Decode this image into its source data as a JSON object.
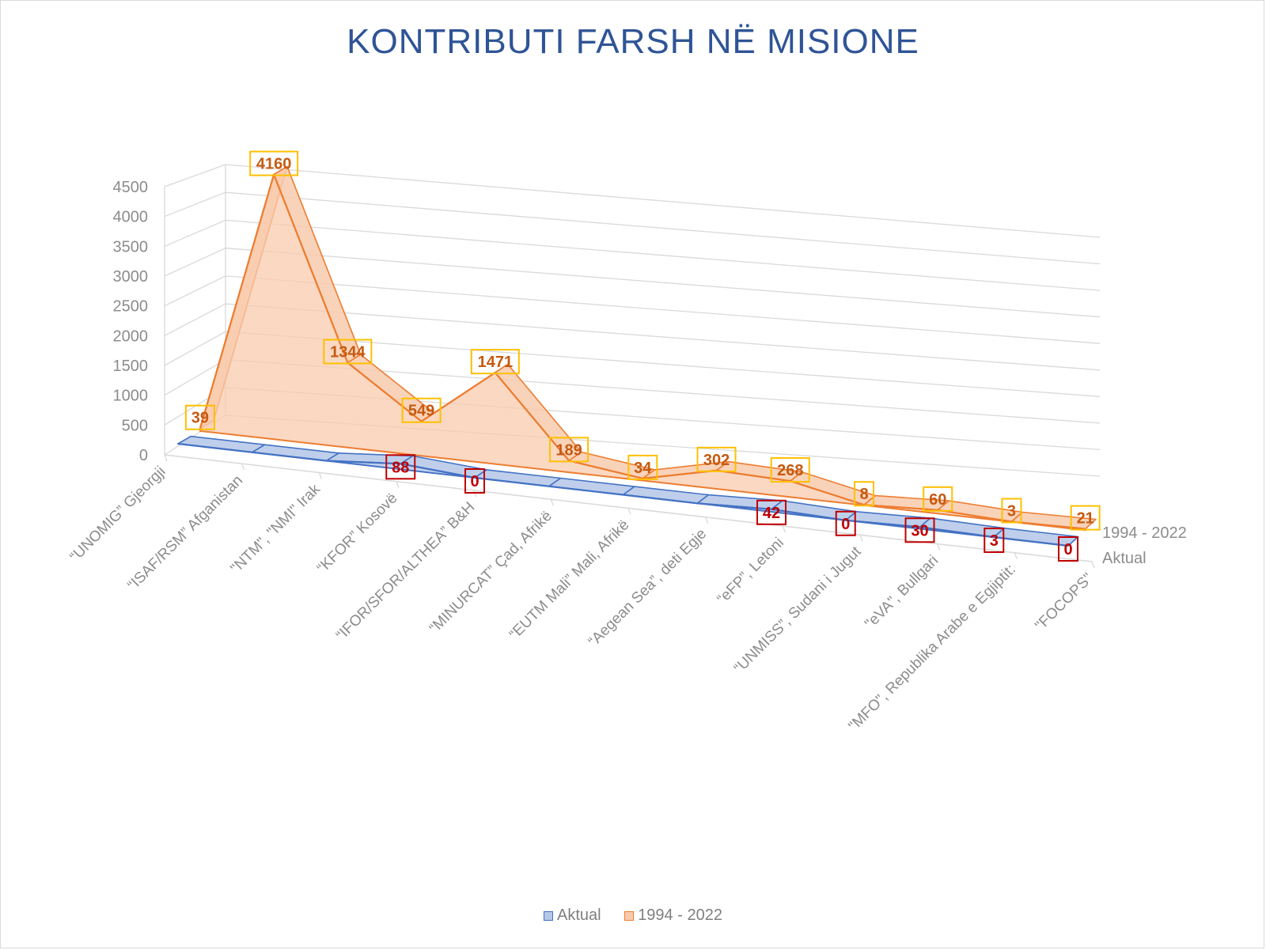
{
  "chart_data": {
    "type": "area",
    "title": "KONTRIBUTI FARSH NË MISIONE",
    "categories": [
      "“UNOMIG” Gjeorgji",
      "“ISAF/RSM” Afganistan",
      "\"NTM\", \"NMI\" Irak",
      "“KFOR” Kosovë",
      "“IFOR/SFOR/ALTHEA” B&H",
      "“MINURCAT” Çad, Afrikë",
      "“EUTM Mali” Mali, Afrikë",
      "“Aegean Sea”, deti Egje",
      "“eFP”, Letoni",
      "“UNMISS”, Sudani i Jugut",
      "\"eVA\", Bullgari",
      "\"MFO\", Republika Arabe e Egjiptit:",
      "\"FOCOPS\""
    ],
    "series": [
      {
        "name": "1994 - 2022",
        "values": [
          39,
          4160,
          1344,
          549,
          1471,
          189,
          34,
          302,
          268,
          8,
          60,
          3,
          21
        ],
        "labels": [
          "39",
          "4160",
          "1344",
          "549",
          "1471",
          "189",
          "34",
          "302",
          "268",
          "8",
          "60",
          "3",
          "21"
        ],
        "color": "#ed7d31",
        "fill": "#f8cbad",
        "label_color": "#c55a11",
        "label_border": "#ffc000"
      },
      {
        "name": "Aktual",
        "values": [
          0,
          0,
          0,
          88,
          0,
          0,
          0,
          0,
          42,
          0,
          30,
          3,
          0
        ],
        "labels": [
          "",
          "",
          "",
          "88",
          "0",
          "",
          "",
          "",
          "42",
          "0",
          "30",
          "3",
          "0"
        ],
        "color": "#4472c4",
        "fill": "#b4c7e7",
        "label_color": "#c00000",
        "label_border": "#c00000"
      }
    ],
    "y_ticks": [
      "0",
      "500",
      "1000",
      "1500",
      "2000",
      "2500",
      "3000",
      "3500",
      "4000",
      "4500"
    ],
    "ylim": [
      0,
      4500
    ],
    "depth_labels": [
      "1994 - 2022",
      "Aktual"
    ],
    "grid": true,
    "legend_position": "bottom"
  },
  "legend": {
    "items": [
      {
        "label": "Aktual",
        "swatch_fill": "#b4c7e7",
        "swatch_border": "#4472c4"
      },
      {
        "label": "1994 - 2022",
        "swatch_fill": "#f8cbad",
        "swatch_border": "#ed7d31"
      }
    ]
  }
}
